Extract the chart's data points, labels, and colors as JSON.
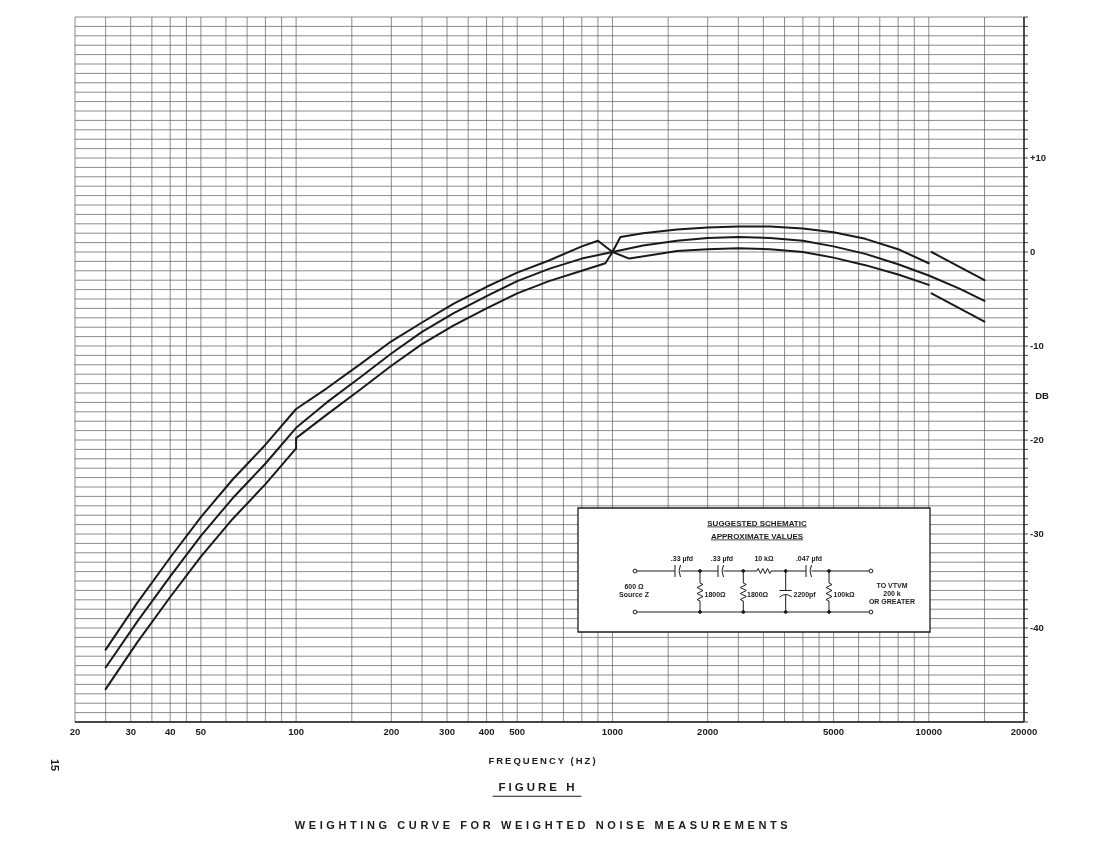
{
  "chart_data": {
    "type": "line",
    "title": "FIGURE H",
    "subtitle": "WEIGHTING CURVE FOR WEIGHTED NOISE MEASUREMENTS",
    "xlabel": "FREQUENCY (HZ)",
    "ylabel": "DB",
    "log": "x",
    "grid": true,
    "xlim": [
      20,
      20000
    ],
    "xticks": [
      20,
      {
        "value": 25,
        "label": null
      },
      30,
      {
        "value": 35,
        "label": null
      },
      40,
      {
        "value": 45,
        "label": null
      },
      50,
      {
        "value": 60,
        "label": null
      },
      {
        "value": 70,
        "label": null
      },
      {
        "value": 80,
        "label": null
      },
      {
        "value": 90,
        "label": null
      },
      100,
      {
        "value": 150,
        "label": null
      },
      200,
      {
        "value": 250,
        "label": null
      },
      300,
      {
        "value": 350,
        "label": null
      },
      400,
      {
        "value": 450,
        "label": null
      },
      500,
      {
        "value": 600,
        "label": null
      },
      {
        "value": 700,
        "label": null
      },
      {
        "value": 800,
        "label": null
      },
      {
        "value": 900,
        "label": null
      },
      1000,
      {
        "value": 1500,
        "label": null
      },
      2000,
      {
        "value": 2500,
        "label": null
      },
      {
        "value": 3000,
        "label": null
      },
      {
        "value": 3500,
        "label": null
      },
      {
        "value": 4000,
        "label": null
      },
      {
        "value": 4500,
        "label": null
      },
      5000,
      {
        "value": 6000,
        "label": null
      },
      {
        "value": 7000,
        "label": null
      },
      {
        "value": 8000,
        "label": null
      },
      {
        "value": 9000,
        "label": null
      },
      10000,
      {
        "value": 15000,
        "label": null
      },
      20000
    ],
    "ylim": [
      -50,
      25
    ],
    "yticks": [
      {
        "value": -50,
        "label": null
      },
      {
        "value": -49,
        "label": null
      },
      {
        "value": -48,
        "label": null
      },
      {
        "value": -47,
        "label": null
      },
      {
        "value": -46,
        "label": null
      },
      {
        "value": -45,
        "label": null
      },
      {
        "value": -44,
        "label": null
      },
      {
        "value": -43,
        "label": null
      },
      {
        "value": -42,
        "label": null
      },
      {
        "value": -41,
        "label": null
      },
      -40,
      {
        "value": -39,
        "label": null
      },
      {
        "value": -38,
        "label": null
      },
      {
        "value": -37,
        "label": null
      },
      {
        "value": -36,
        "label": null
      },
      {
        "value": -35,
        "label": null
      },
      {
        "value": -34,
        "label": null
      },
      {
        "value": -33,
        "label": null
      },
      {
        "value": -32,
        "label": null
      },
      {
        "value": -31,
        "label": null
      },
      -30,
      {
        "value": -29,
        "label": null
      },
      {
        "value": -28,
        "label": null
      },
      {
        "value": -27,
        "label": null
      },
      {
        "value": -26,
        "label": null
      },
      {
        "value": -25,
        "label": null
      },
      {
        "value": -24,
        "label": null
      },
      {
        "value": -23,
        "label": null
      },
      {
        "value": -22,
        "label": null
      },
      {
        "value": -21,
        "label": null
      },
      -20,
      {
        "value": -19,
        "label": null
      },
      {
        "value": -18,
        "label": null
      },
      {
        "value": -17,
        "label": null
      },
      {
        "value": -16,
        "label": null
      },
      {
        "value": -15,
        "label": null
      },
      {
        "value": -14,
        "label": null
      },
      {
        "value": -13,
        "label": null
      },
      {
        "value": -12,
        "label": null
      },
      {
        "value": -11,
        "label": null
      },
      -10,
      {
        "value": -9,
        "label": null
      },
      {
        "value": -8,
        "label": null
      },
      {
        "value": -7,
        "label": null
      },
      {
        "value": -6,
        "label": null
      },
      {
        "value": -5,
        "label": null
      },
      {
        "value": -4,
        "label": null
      },
      {
        "value": -3,
        "label": null
      },
      {
        "value": -2,
        "label": null
      },
      {
        "value": -1,
        "label": null
      },
      0,
      {
        "value": 1,
        "label": null
      },
      {
        "value": 2,
        "label": null
      },
      {
        "value": 3,
        "label": null
      },
      {
        "value": 4,
        "label": null
      },
      {
        "value": 5,
        "label": null
      },
      {
        "value": 6,
        "label": null
      },
      {
        "value": 7,
        "label": null
      },
      {
        "value": 8,
        "label": null
      },
      {
        "value": 9,
        "label": null
      },
      {
        "value": 10,
        "label": "+10"
      },
      {
        "value": 11,
        "label": null
      },
      {
        "value": 12,
        "label": null
      },
      {
        "value": 13,
        "label": null
      },
      {
        "value": 14,
        "label": null
      },
      {
        "value": 15,
        "label": null
      },
      {
        "value": 16,
        "label": null
      },
      {
        "value": 17,
        "label": null
      },
      {
        "value": 18,
        "label": null
      },
      {
        "value": 19,
        "label": null
      },
      {
        "value": 20,
        "label": null
      },
      {
        "value": 21,
        "label": null
      },
      {
        "value": 22,
        "label": null
      },
      {
        "value": 23,
        "label": null
      },
      {
        "value": 24,
        "label": null
      },
      {
        "value": 25,
        "label": null
      }
    ],
    "series": [
      {
        "color": "#1a1a1a",
        "x": [
          25,
          31.5,
          40,
          50,
          63,
          80,
          100,
          125,
          160,
          200,
          250,
          315,
          400,
          500,
          630,
          800,
          900,
          1000,
          1060,
          1250,
          1600,
          2000,
          2500,
          3150,
          4000,
          5000,
          6300,
          8000,
          10000
        ],
        "values": [
          -42.3,
          -37.3,
          -32.5,
          -28.2,
          -24.2,
          -20.5,
          -16.7,
          -14.5,
          -11.9,
          -9.5,
          -7.5,
          -5.5,
          -3.7,
          -2.2,
          -0.9,
          0.6,
          1.2,
          0,
          1.6,
          2.0,
          2.4,
          2.6,
          2.7,
          2.7,
          2.5,
          2.1,
          1.4,
          0.3,
          -1.2
        ]
      },
      {
        "color": "#1a1a1a",
        "x": [
          25,
          31.5,
          40,
          50,
          63,
          80,
          100,
          125,
          160,
          200,
          250,
          315,
          400,
          500,
          630,
          800,
          1000,
          1250,
          1600,
          2000,
          2500,
          3150,
          4000,
          5000,
          6300,
          8000,
          10000,
          12500,
          15000
        ],
        "values": [
          -44.2,
          -39.3,
          -34.5,
          -30.2,
          -26.2,
          -22.5,
          -18.7,
          -16.0,
          -13.3,
          -10.8,
          -8.5,
          -6.5,
          -4.7,
          -3.1,
          -1.8,
          -0.7,
          0,
          0.7,
          1.2,
          1.5,
          1.6,
          1.5,
          1.2,
          0.6,
          -0.2,
          -1.3,
          -2.5,
          -3.9,
          -5.2
        ]
      },
      {
        "color": "#1a1a1a",
        "x": [
          25,
          31.5,
          40,
          50,
          63,
          80,
          100,
          100,
          125,
          160,
          200,
          250,
          315,
          400,
          500,
          630,
          800,
          950,
          1000,
          1130,
          1600,
          2000,
          2500,
          3150,
          4000,
          5000,
          6300,
          8000,
          10000
        ],
        "values": [
          -46.5,
          -41.5,
          -36.7,
          -32.4,
          -28.4,
          -24.7,
          -20.9,
          -19.8,
          -17.3,
          -14.6,
          -12.1,
          -9.8,
          -7.8,
          -6.0,
          -4.4,
          -3.1,
          -2.0,
          -1.2,
          0,
          -0.7,
          0.1,
          0.3,
          0.4,
          0.3,
          0.0,
          -0.6,
          -1.4,
          -2.4,
          -3.5
        ]
      },
      {
        "color": "#1a1a1a",
        "x": [
          10200,
          15000
        ],
        "values": [
          0,
          -3.0
        ]
      },
      {
        "color": "#1a1a1a",
        "x": [
          10200,
          15000
        ],
        "values": [
          -4.4,
          -7.4
        ]
      }
    ],
    "annotations": [
      "15",
      "SUGGESTED SCHEMATIC",
      "APPROXIMATE VALUES",
      ".33 µfd",
      ".33 µfd",
      "10 kΩ",
      ".047 µfd",
      "600 Ω",
      "Source Z",
      "1800Ω",
      "1800Ω",
      "2200pf",
      "100kΩ",
      "TO VTVM",
      "200 k",
      "OR GREATER"
    ]
  }
}
